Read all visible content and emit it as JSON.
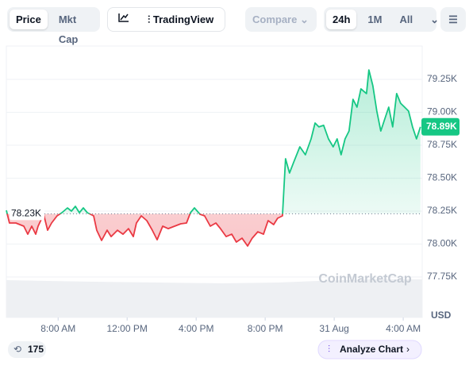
{
  "toolbar": {
    "price": "Price",
    "mkt_cap": "Mkt Cap",
    "tradingview": "TradingView",
    "compare": "Compare",
    "ranges": [
      "24h",
      "1M",
      "All"
    ]
  },
  "chart_data": {
    "type": "line",
    "x": [
      5.0,
      5.18,
      5.55,
      6.01,
      6.24,
      6.47,
      6.7,
      6.84,
      7.16,
      7.39,
      7.62,
      7.94,
      8.22,
      8.54,
      8.77,
      9.0,
      9.23,
      9.46,
      9.69,
      10.06,
      10.24,
      10.52,
      10.84,
      11.07,
      11.44,
      11.76,
      12.08,
      12.36,
      12.54,
      12.82,
      13.14,
      13.46,
      13.74,
      14.06,
      14.38,
      14.75,
      15.11,
      15.44,
      15.67,
      15.9,
      16.22,
      16.49,
      16.82,
      17.14,
      17.41,
      17.74,
      18.06,
      18.33,
      18.66,
      18.98,
      19.25,
      19.57,
      19.9,
      20.17,
      20.49,
      20.72,
      21.0,
      21.18,
      21.41,
      21.64,
      22.01,
      22.33,
      22.66,
      22.89,
      23.11,
      23.39,
      23.67,
      23.94,
      24.17,
      24.4,
      24.63,
      24.86,
      25.09,
      25.32,
      25.55,
      25.87,
      26.01,
      26.24,
      26.47,
      26.7,
      26.93,
      27.16,
      27.39,
      27.62,
      27.85,
      28.08,
      28.31,
      28.54,
      28.77,
      29.0
    ],
    "values": [
      78256,
      78160,
      78160,
      78136,
      78075,
      78136,
      78075,
      78136,
      78226,
      78105,
      78160,
      78214,
      78238,
      78274,
      78250,
      78286,
      78238,
      78274,
      78238,
      78214,
      78105,
      78027,
      78105,
      78057,
      78105,
      78075,
      78117,
      78057,
      78160,
      78214,
      78178,
      78105,
      78033,
      78136,
      78117,
      78136,
      78154,
      78160,
      78238,
      78274,
      78226,
      78214,
      78136,
      78160,
      78117,
      78057,
      78075,
      78015,
      78045,
      77985,
      78045,
      78093,
      78075,
      78178,
      78148,
      78196,
      78214,
      78648,
      78539,
      78617,
      78738,
      78678,
      78798,
      78919,
      78889,
      78901,
      78798,
      78738,
      78798,
      78678,
      78798,
      78858,
      79099,
      79039,
      79178,
      79142,
      79322,
      79202,
      79009,
      78858,
      78949,
      79039,
      78889,
      79142,
      79069,
      79039,
      79009,
      78889,
      78798,
      78890
    ],
    "up_color": "#16c784",
    "down_color": "#ea3943",
    "xlim": [
      5,
      29.1
    ],
    "xticks": [
      {
        "value": 8,
        "label": "8:00 AM"
      },
      {
        "value": 12,
        "label": "12:00 PM"
      },
      {
        "value": 16,
        "label": "4:00 PM"
      },
      {
        "value": 20,
        "label": "8:00 PM"
      },
      {
        "value": 24,
        "label": "31 Aug"
      },
      {
        "value": 28,
        "label": "4:00 AM"
      }
    ],
    "ylim": [
      77443,
      79491
    ],
    "yticks": [
      {
        "value": 77750,
        "label": "77.75K"
      },
      {
        "value": 78000,
        "label": "78.00K"
      },
      {
        "value": 78250,
        "label": "78.25K"
      },
      {
        "value": 78500,
        "label": "78.50K"
      },
      {
        "value": 78750,
        "label": "78.75K"
      },
      {
        "value": 79000,
        "label": "79.00K"
      },
      {
        "value": 79250,
        "label": "79.25K"
      }
    ],
    "y_unit": "USD",
    "grid": true,
    "baseline": {
      "value": 78230,
      "label": "78.23K"
    },
    "last_price": {
      "value": 78890,
      "label": "78.89K"
    },
    "watermark": "CoinMarketCap"
  },
  "footer": {
    "badge": "175",
    "analyze": "Analyze Chart"
  }
}
